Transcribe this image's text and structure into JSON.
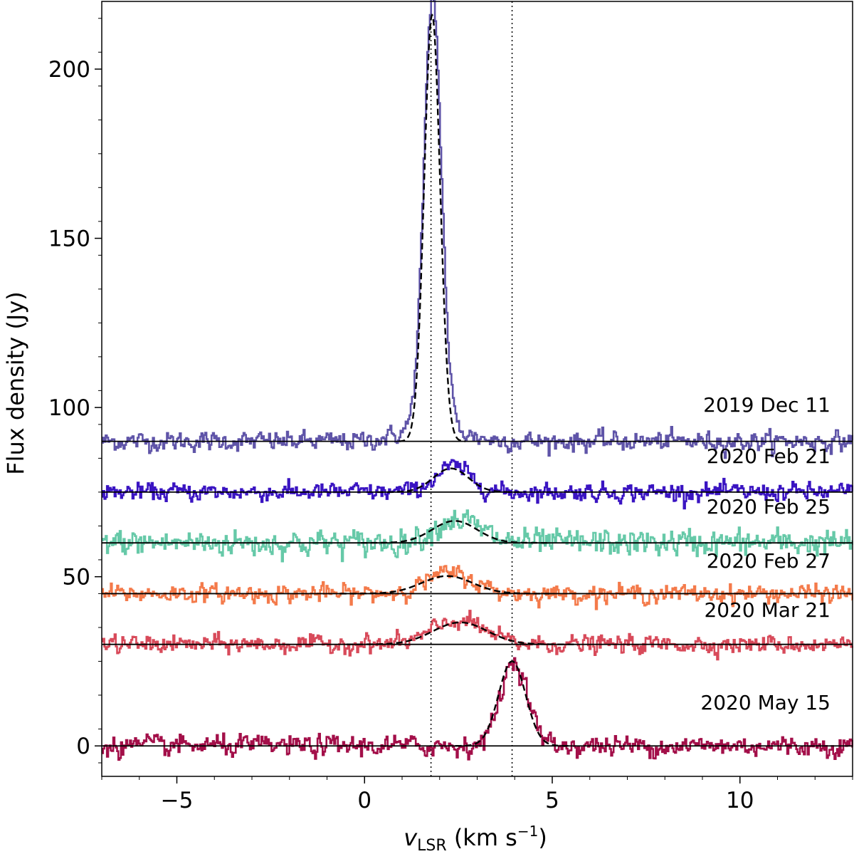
{
  "chart_data": {
    "type": "line",
    "title": "",
    "xlabel": {
      "symbol": "v",
      "subscript": "LSR",
      "unit_prefix": " (km s",
      "unit_exponent": "−1",
      "unit_suffix": ")"
    },
    "ylabel": "Flux density (Jy)",
    "xlim": [
      -7,
      13
    ],
    "ylim": [
      -9,
      220
    ],
    "xticks": [
      -5,
      0,
      5,
      10
    ],
    "xtick_labels": [
      "−5",
      "0",
      "5",
      "10"
    ],
    "yticks": [
      0,
      50,
      100,
      150,
      200
    ],
    "ytick_labels": [
      "0",
      "50",
      "100",
      "150",
      "200"
    ],
    "grid": false,
    "reference_velocities": [
      1.77,
      3.93
    ],
    "series": [
      {
        "name": "2019 Dec 11",
        "color": "#5f54a8",
        "offset": 90,
        "noise": 1.3,
        "peaks": [
          {
            "amp": 127,
            "center": 1.8,
            "fwhm": 0.55
          }
        ],
        "fit": {
          "amp": 126,
          "center": 1.8,
          "fwhm": 0.5
        }
      },
      {
        "name": "2020 Feb 21",
        "color": "#3a14c2",
        "offset": 75,
        "noise": 1.2,
        "peaks": [
          {
            "amp": 7.5,
            "center": 2.35,
            "fwhm": 1.1
          }
        ],
        "fit": {
          "amp": 7.0,
          "center": 2.3,
          "fwhm": 1.1
        }
      },
      {
        "name": "2020 Feb 25",
        "color": "#66c9a8",
        "offset": 60,
        "noise": 1.8,
        "peaks": [
          {
            "amp": 7,
            "center": 2.45,
            "fwhm": 1.4
          }
        ],
        "fit": {
          "amp": 6.5,
          "center": 2.4,
          "fwhm": 1.4
        }
      },
      {
        "name": "2020 Feb 27",
        "color": "#f47a4a",
        "offset": 45,
        "noise": 1.2,
        "peaks": [
          {
            "amp": 6,
            "center": 2.25,
            "fwhm": 1.5
          }
        ],
        "fit": {
          "amp": 5.2,
          "center": 2.2,
          "fwhm": 1.6
        }
      },
      {
        "name": "2020 Mar 21",
        "color": "#d84a5a",
        "offset": 30,
        "noise": 1.2,
        "peaks": [
          {
            "amp": 7,
            "center": 2.5,
            "fwhm": 1.6
          }
        ],
        "fit": {
          "amp": 6.5,
          "center": 2.55,
          "fwhm": 1.7
        }
      },
      {
        "name": "2020 May 15",
        "color": "#a30f49",
        "offset": 0,
        "noise": 1.4,
        "peaks": [
          {
            "amp": 25,
            "center": 3.97,
            "fwhm": 0.85
          }
        ],
        "fit": {
          "amp": 25,
          "center": 3.93,
          "fwhm": 0.85
        }
      }
    ]
  }
}
